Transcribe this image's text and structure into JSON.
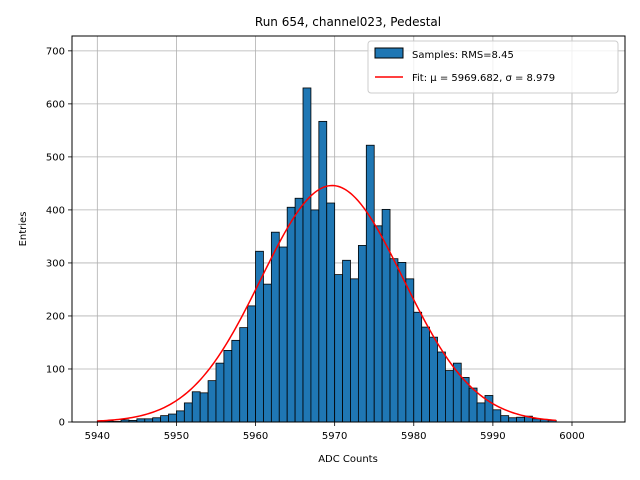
{
  "chart_data": {
    "type": "bar",
    "title": "Run 654, channel023, Pedestal",
    "xlabel": "ADC Counts",
    "ylabel": "Entries",
    "xlim": [
      5936.8,
      6006.7
    ],
    "ylim": [
      0,
      728
    ],
    "grid": true,
    "legend_position": "top-right",
    "x_ticks": [
      5940,
      5950,
      5960,
      5970,
      5980,
      5990,
      6000
    ],
    "y_ticks": [
      0,
      100,
      200,
      300,
      400,
      500,
      600,
      700
    ],
    "bin_width": 1,
    "bins": {
      "start": [
        5940,
        5941,
        5942,
        5943,
        5944,
        5945,
        5946,
        5947,
        5948,
        5949,
        5950,
        5951,
        5952,
        5953,
        5954,
        5955,
        5956,
        5957,
        5958,
        5959,
        5960,
        5961,
        5962,
        5963,
        5964,
        5965,
        5966,
        5967,
        5968,
        5969,
        5970,
        5971,
        5972,
        5973,
        5974,
        5975,
        5976,
        5977,
        5978,
        5979,
        5980,
        5981,
        5982,
        5983,
        5984,
        5985,
        5986,
        5987,
        5988,
        5989,
        5990,
        5991,
        5992,
        5993,
        5994,
        5995,
        5996,
        5997
      ],
      "counts": [
        2,
        2,
        1,
        4,
        3,
        6,
        6,
        8,
        12,
        15,
        21,
        36,
        57,
        55,
        78,
        111,
        135,
        154,
        178,
        219,
        322,
        260,
        358,
        330,
        405,
        422,
        630,
        400,
        567,
        413,
        278,
        305,
        270,
        333,
        522,
        370,
        401,
        308,
        301,
        270,
        207,
        179,
        160,
        132,
        97,
        111,
        84,
        64,
        36,
        50,
        23,
        12,
        8,
        9,
        11,
        6,
        5,
        3
      ]
    },
    "series": [
      {
        "name": "Samples: RMS=8.45",
        "kind": "histogram",
        "color": "#1f77b4",
        "edge_color": "#000000"
      },
      {
        "name": "Fit: μ = 5969.682, σ = 8.979",
        "kind": "gaussian",
        "color": "#ff0000",
        "mu": 5969.682,
        "sigma": 8.979,
        "amplitude": 446,
        "x_range": [
          5940,
          5998
        ]
      }
    ]
  }
}
